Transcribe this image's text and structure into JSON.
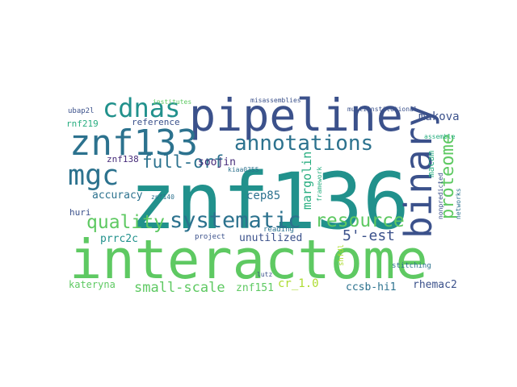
{
  "cloud": {
    "colors": {
      "dark_purple": "#472c7a",
      "indigo": "#3b518b",
      "blue": "#2c728e",
      "teal": "#21918c",
      "green_teal": "#28ae80",
      "green": "#5ec962",
      "light_green": "#addc30",
      "yellow": "#fde725"
    },
    "words": [
      {
        "id": "znf136",
        "text": "znf136",
        "color": "teal"
      },
      {
        "id": "interactome",
        "text": "interactome",
        "color": "green"
      },
      {
        "id": "pipeline",
        "text": "pipeline",
        "color": "indigo"
      },
      {
        "id": "znf133",
        "text": "znf133",
        "color": "blue"
      },
      {
        "id": "binary",
        "text": "binary",
        "color": "indigo"
      },
      {
        "id": "mgc",
        "text": "mgc",
        "color": "blue"
      },
      {
        "id": "cdnas",
        "text": "cdnas",
        "color": "teal"
      },
      {
        "id": "systematic",
        "text": "systematic",
        "color": "blue"
      },
      {
        "id": "annotations",
        "text": "annotations",
        "color": "blue"
      },
      {
        "id": "quality",
        "text": "quality",
        "color": "green"
      },
      {
        "id": "resource",
        "text": "resource",
        "color": "green"
      },
      {
        "id": "full-orf",
        "text": "full-orf",
        "color": "blue"
      },
      {
        "id": "proteome",
        "text": "proteome",
        "color": "green"
      },
      {
        "id": "small-scale",
        "text": "small-scale",
        "color": "green"
      },
      {
        "id": "5-est",
        "text": "5'-est",
        "color": "indigo"
      },
      {
        "id": "accuracy",
        "text": "accuracy",
        "color": "blue"
      },
      {
        "id": "cep85",
        "text": "cep85",
        "color": "blue"
      },
      {
        "id": "soojin",
        "text": "soojin",
        "color": "dark_purple"
      },
      {
        "id": "margolin",
        "text": "margolin",
        "color": "green_teal"
      },
      {
        "id": "makova",
        "text": "makova",
        "color": "indigo"
      },
      {
        "id": "rnf219",
        "text": "rnf219",
        "color": "green_teal"
      },
      {
        "id": "znf138",
        "text": "znf138",
        "color": "dark_purple"
      },
      {
        "id": "prrc2c",
        "text": "prrc2c",
        "color": "teal"
      },
      {
        "id": "huri",
        "text": "huri",
        "color": "indigo"
      },
      {
        "id": "reference",
        "text": "reference",
        "color": "indigo"
      },
      {
        "id": "unutilized",
        "text": "unutilized",
        "color": "indigo"
      },
      {
        "id": "kateryna",
        "text": "kateryna",
        "color": "green"
      },
      {
        "id": "znf151",
        "text": "znf151",
        "color": "green"
      },
      {
        "id": "cr_1.0",
        "text": "cr_1.0",
        "color": "light_green"
      },
      {
        "id": "ccsb-hi1",
        "text": "ccsb-hi1",
        "color": "blue"
      },
      {
        "id": "rhemac2",
        "text": "rhemac2",
        "color": "indigo"
      },
      {
        "id": "macam",
        "text": "macam",
        "color": "green_teal"
      },
      {
        "id": "ubap2l",
        "text": "ubap2l",
        "color": "indigo"
      },
      {
        "id": "institutes",
        "text": "institutes",
        "color": "green"
      },
      {
        "id": "misassemblies",
        "text": "misassemblies",
        "color": "indigo"
      },
      {
        "id": "multiinstitutional",
        "text": "multiinstitutional",
        "color": "indigo"
      },
      {
        "id": "kiaa0355",
        "text": "kiaa0355",
        "color": "blue"
      },
      {
        "id": "znf140",
        "text": "znf140",
        "color": "blue"
      },
      {
        "id": "project",
        "text": "project",
        "color": "indigo"
      },
      {
        "id": "reading",
        "text": "reading",
        "color": "blue"
      },
      {
        "id": "lutz",
        "text": "lutz",
        "color": "indigo"
      },
      {
        "id": "framework",
        "text": "framework",
        "color": "green_teal"
      },
      {
        "id": "nonpredicted",
        "text": "nonpredicted",
        "color": "indigo"
      },
      {
        "id": "networks",
        "text": "networks",
        "color": "blue"
      },
      {
        "id": "assemble",
        "text": "assemble",
        "color": "green_teal"
      },
      {
        "id": "stitching",
        "text": "stitching",
        "color": "blue"
      },
      {
        "id": "shfdl",
        "text": "shfdl",
        "color": "light_green"
      }
    ]
  }
}
